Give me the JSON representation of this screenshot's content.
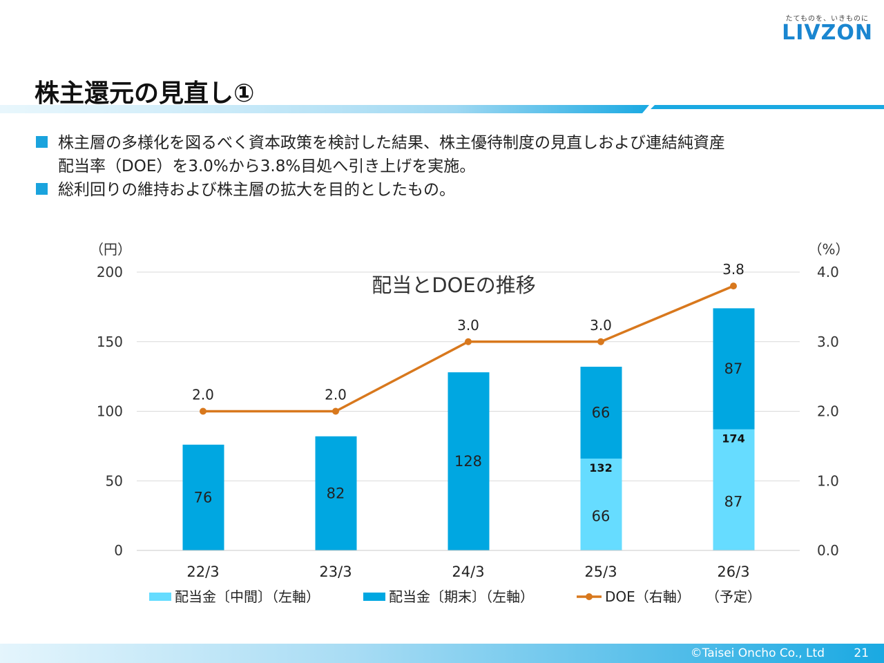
{
  "header": {
    "tagline": "たてものを、いきものに",
    "logo": "LIVZON",
    "title": "株主還元の見直し①"
  },
  "bullets": [
    "株主層の多様化を図るべく資本政策を検討した結果、株主優待制度の見直しおよび連結純資産",
    "配当率（DOE）を3.0%から3.8%目処へ引き上げを実施。",
    "総利回りの維持および株主層の拡大を目的としたもの。"
  ],
  "colors": {
    "accent": "#1aa3dd",
    "interim_bar": "#66dcff",
    "final_bar": "#00a7e1",
    "doe_line": "#d8781d"
  },
  "chart_data": {
    "type": "bar",
    "title": "配当とDOEの推移",
    "categories": [
      "22/3",
      "23/3",
      "24/3",
      "25/3",
      "26/3"
    ],
    "category_note": "（予定）",
    "ylabel": "（円）",
    "y2label": "（%）",
    "ylim": [
      0,
      200
    ],
    "y2lim": [
      0.0,
      4.0
    ],
    "yticks": [
      "0",
      "50",
      "100",
      "150",
      "200"
    ],
    "y2ticks": [
      "0.0",
      "1.0",
      "2.0",
      "3.0",
      "4.0"
    ],
    "grid": true,
    "legend_position": "bottom",
    "series": [
      {
        "name": "配当金〔中間〕（左軸）",
        "kind": "bar",
        "stack": "div",
        "values": [
          0,
          0,
          0,
          66,
          87
        ],
        "labels": [
          "",
          "",
          "",
          "66",
          "87"
        ]
      },
      {
        "name": "配当金〔期末〕（左軸）",
        "kind": "bar",
        "stack": "div",
        "values": [
          76,
          82,
          128,
          66,
          87
        ],
        "labels": [
          "76",
          "82",
          "128",
          "66",
          "87"
        ]
      },
      {
        "name": "DOE（右軸）",
        "kind": "line",
        "axis": "right",
        "values": [
          2.0,
          2.0,
          3.0,
          3.0,
          3.8
        ],
        "labels": [
          "2.0",
          "2.0",
          "3.0",
          "3.0",
          "3.8"
        ]
      }
    ],
    "totals": [
      "",
      "",
      "",
      "132",
      "174"
    ]
  },
  "footer": {
    "copyright": "©Taisei Oncho Co., Ltd",
    "page_number": "21"
  }
}
